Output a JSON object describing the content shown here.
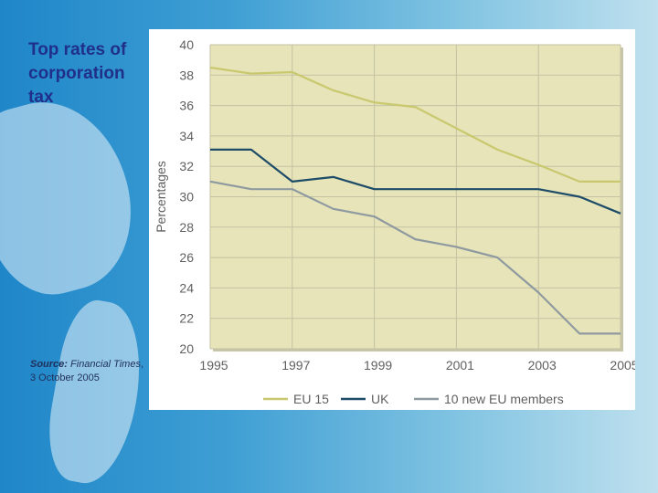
{
  "slide": {
    "title": "Top rates of corporation tax",
    "source_label": "Source:",
    "source_publication": "Financial Times",
    "source_rest": ", 3 October 2005"
  },
  "chart_data": {
    "type": "line",
    "title": "",
    "xlabel": "",
    "ylabel": "Percentages",
    "x": [
      1995,
      1996,
      1997,
      1998,
      1999,
      2000,
      2001,
      2002,
      2003,
      2004,
      2005
    ],
    "x_tick_labels": [
      "1995",
      "1997",
      "1999",
      "2001",
      "2003",
      "2005"
    ],
    "y_tick_labels": [
      "40",
      "38",
      "36",
      "34",
      "32",
      "30",
      "28",
      "26",
      "24",
      "22",
      "20"
    ],
    "ylim": [
      20,
      40
    ],
    "xlim": [
      1995,
      2005
    ],
    "grid": true,
    "legend_position": "bottom",
    "series": [
      {
        "name": "EU 15",
        "color": "#c9c86e",
        "values": [
          38.5,
          38.1,
          38.2,
          37.0,
          36.2,
          35.9,
          34.5,
          33.1,
          32.1,
          31.0,
          31.0
        ]
      },
      {
        "name": "UK",
        "color": "#1e4c68",
        "values": [
          33.1,
          33.1,
          31.0,
          31.3,
          30.5,
          30.5,
          30.5,
          30.5,
          30.5,
          30.0,
          28.9
        ]
      },
      {
        "name": "10 new EU members",
        "color": "#8f9aa0",
        "values": [
          31.0,
          30.5,
          30.5,
          29.2,
          28.7,
          27.2,
          26.7,
          26.0,
          23.7,
          21.0,
          21.0
        ]
      }
    ]
  }
}
